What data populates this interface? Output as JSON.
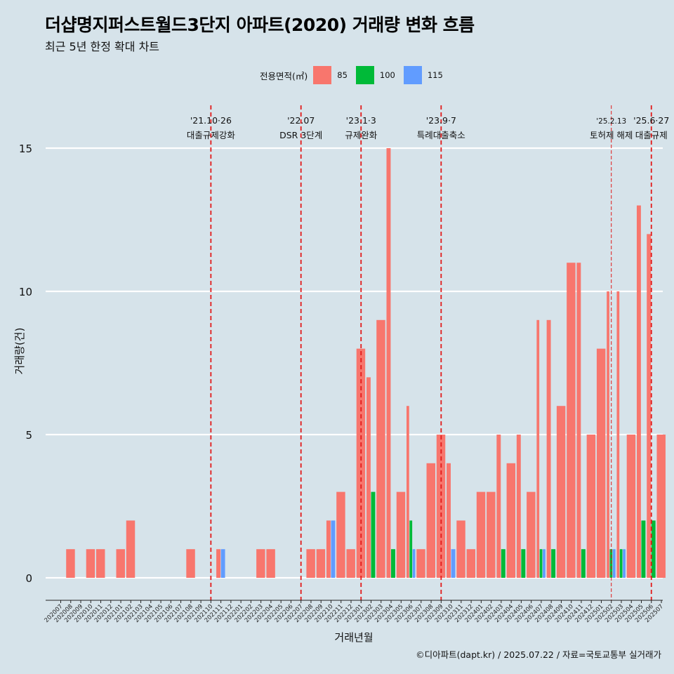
{
  "title": "더샵명지퍼스트월드3단지 아파트(2020) 거래량 변화 흐름",
  "subtitle": "최근 5년 한정 확대 차트",
  "caption": "©디아파트(dapt.kr) / 2025.07.22 / 자료=국토교통부 실거래가",
  "legend": {
    "title": "전용면적(㎡)",
    "items": [
      {
        "label": "85",
        "color": "#f8766d"
      },
      {
        "label": "100",
        "color": "#00ba38"
      },
      {
        "label": "115",
        "color": "#619cff"
      }
    ]
  },
  "chart_data": {
    "type": "bar",
    "xlabel": "거래년월",
    "ylabel": "거래량(건)",
    "ylim": [
      -0.8,
      16.5
    ],
    "yticks": [
      0,
      5,
      10,
      15
    ],
    "grid": true,
    "legend_position": "top",
    "categories": [
      "202007",
      "202008",
      "202009",
      "202010",
      "202011",
      "202012",
      "202101",
      "202102",
      "202103",
      "202104",
      "202105",
      "202106",
      "202107",
      "202108",
      "202109",
      "202110",
      "202111",
      "202112",
      "202201",
      "202202",
      "202203",
      "202204",
      "202205",
      "202206",
      "202207",
      "202208",
      "202209",
      "202210",
      "202211",
      "202212",
      "202301",
      "202302",
      "202303",
      "202304",
      "202305",
      "202306",
      "202307",
      "202308",
      "202309",
      "202310",
      "202311",
      "202312",
      "202401",
      "202402",
      "202403",
      "202404",
      "202405",
      "202406",
      "202407",
      "202408",
      "202409",
      "202410",
      "202411",
      "202412",
      "202501",
      "202502",
      "202503",
      "202504",
      "202505",
      "202506",
      "202507"
    ],
    "series": [
      {
        "name": "85",
        "color": "#f8766d",
        "values": [
          0,
          1,
          0,
          1,
          1,
          0,
          1,
          2,
          0,
          0,
          0,
          0,
          0,
          1,
          0,
          0,
          1,
          0,
          0,
          0,
          1,
          1,
          0,
          0,
          0,
          1,
          1,
          2,
          3,
          1,
          8,
          7,
          9,
          15,
          3,
          6,
          1,
          4,
          5,
          4,
          2,
          1,
          3,
          3,
          5,
          4,
          5,
          3,
          9,
          9,
          6,
          11,
          11,
          5,
          8,
          10,
          10,
          5,
          13,
          12,
          5
        ]
      },
      {
        "name": "100",
        "color": "#00ba38",
        "values": [
          0,
          0,
          0,
          0,
          0,
          0,
          0,
          0,
          0,
          0,
          0,
          0,
          0,
          0,
          0,
          0,
          0,
          0,
          0,
          0,
          0,
          0,
          0,
          0,
          0,
          0,
          0,
          0,
          0,
          0,
          0,
          3,
          0,
          1,
          0,
          2,
          0,
          0,
          0,
          0,
          0,
          0,
          0,
          0,
          1,
          0,
          1,
          0,
          1,
          1,
          0,
          0,
          1,
          0,
          0,
          1,
          1,
          0,
          2,
          2,
          0
        ]
      },
      {
        "name": "115",
        "color": "#619cff",
        "values": [
          0,
          0,
          0,
          0,
          0,
          0,
          0,
          0,
          0,
          0,
          0,
          0,
          0,
          0,
          0,
          0,
          1,
          0,
          0,
          0,
          0,
          0,
          0,
          0,
          0,
          0,
          0,
          2,
          0,
          0,
          0,
          0,
          0,
          0,
          0,
          1,
          0,
          0,
          0,
          1,
          0,
          0,
          0,
          0,
          0,
          0,
          0,
          0,
          1,
          0,
          0,
          0,
          0,
          0,
          0,
          1,
          1,
          0,
          0,
          0,
          0
        ]
      }
    ],
    "annotations": [
      {
        "at": "202110",
        "date": "'21.10·26",
        "label": "대출규제강화",
        "style": "thick"
      },
      {
        "at": "202207",
        "date": "'22.07",
        "label": "DSR 3단계",
        "style": "thick"
      },
      {
        "at": "202301",
        "date": "'23.1·3",
        "label": "규제완화",
        "style": "thick"
      },
      {
        "at": "202309",
        "date": "'23.9·7",
        "label": "특례대출축소",
        "style": "thick"
      },
      {
        "at": "202502",
        "date": "'25.2.13",
        "label": "토허제 해제",
        "style": "thin"
      },
      {
        "at": "202506",
        "date": "'25.6·27",
        "label": "대출규제",
        "style": "thick"
      }
    ]
  }
}
